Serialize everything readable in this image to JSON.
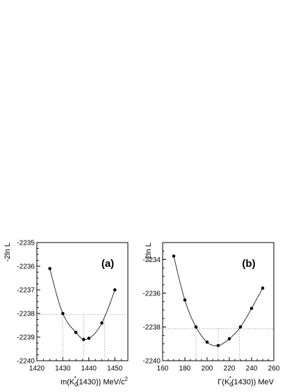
{
  "chart_data": [
    {
      "type": "scatter",
      "panel_label": "(a)",
      "xlabel": "m(K",
      "xlabel_sub": "0",
      "xlabel_sup": "*",
      "xlabel_rest": "(1430)) MeV/c",
      "xlabel_sup2": "2",
      "ylabel": "-2ln L",
      "xlim": [
        1420,
        1455
      ],
      "ylim": [
        -2240,
        -2235
      ],
      "x_ticks": [
        1420,
        1430,
        1440,
        1450
      ],
      "y_ticks": [
        -2240,
        -2239,
        -2238,
        -2237,
        -2236,
        -2235
      ],
      "x_tick_labels": [
        "1420",
        "1430",
        "1440",
        "1450"
      ],
      "y_tick_labels": [
        "-2240",
        "-2239",
        "-2238",
        "-2237",
        "-2236",
        "-2235"
      ],
      "points": [
        {
          "x": 1425,
          "y": -2236.1
        },
        {
          "x": 1430,
          "y": -2238.0
        },
        {
          "x": 1435,
          "y": -2238.8
        },
        {
          "x": 1438,
          "y": -2239.1
        },
        {
          "x": 1440,
          "y": -2239.05
        },
        {
          "x": 1445,
          "y": -2238.4
        },
        {
          "x": 1450,
          "y": -2237.0
        }
      ],
      "reference_level": -2238.05,
      "reference_x": [
        1430,
        1438,
        1446
      ],
      "grid": false
    },
    {
      "type": "scatter",
      "panel_label": "(b)",
      "xlabel": "Γ(K",
      "xlabel_sub": "0",
      "xlabel_sup": "*",
      "xlabel_rest": "(1430)) MeV",
      "xlabel_sup2": "",
      "ylabel": "-2ln L",
      "xlim": [
        160,
        260
      ],
      "ylim": [
        -2240,
        -2233
      ],
      "x_ticks": [
        160,
        180,
        200,
        220,
        240,
        260
      ],
      "y_ticks": [
        -2240,
        -2238,
        -2236,
        -2234
      ],
      "x_tick_labels": [
        "160",
        "180",
        "200",
        "220",
        "240",
        "260"
      ],
      "y_tick_labels": [
        "-2240",
        "-2238",
        "-2236",
        "-2234"
      ],
      "points": [
        {
          "x": 170,
          "y": -2233.8
        },
        {
          "x": 180,
          "y": -2236.4
        },
        {
          "x": 190,
          "y": -2238.0
        },
        {
          "x": 200,
          "y": -2238.9
        },
        {
          "x": 210,
          "y": -2239.1
        },
        {
          "x": 220,
          "y": -2238.7
        },
        {
          "x": 230,
          "y": -2238.0
        },
        {
          "x": 240,
          "y": -2236.9
        },
        {
          "x": 250,
          "y": -2235.7
        }
      ],
      "reference_level": -2238.1,
      "reference_x": [
        190,
        210,
        229
      ],
      "grid": false
    }
  ]
}
